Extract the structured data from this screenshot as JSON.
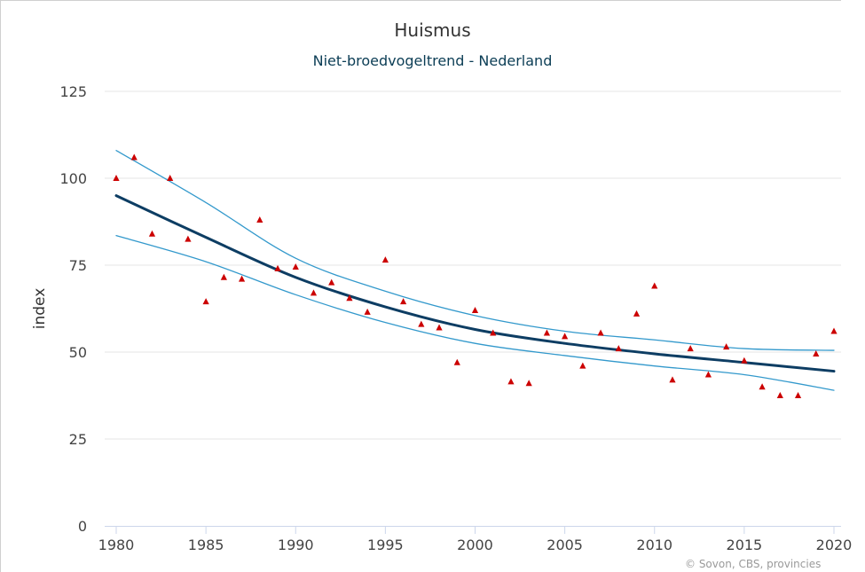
{
  "chart_data": {
    "type": "line",
    "title": "Huismus",
    "subtitle": "Niet-broedvogeltrend - Nederland",
    "xlabel": "",
    "ylabel": "index",
    "xlim": [
      1980,
      2020
    ],
    "ylim": [
      0,
      125
    ],
    "x_ticks": [
      1980,
      1985,
      1990,
      1995,
      2000,
      2005,
      2010,
      2015,
      2020
    ],
    "y_ticks": [
      0,
      25,
      50,
      75,
      100,
      125
    ],
    "grid": "horizontal",
    "colors": {
      "trend": "#0d3d63",
      "confidence": "#3399cc",
      "points": "#cc0000",
      "grid": "#e6e6e6",
      "axis": "#ccd6eb",
      "title": "#333333",
      "subtitle": "#0b3d55"
    },
    "series": [
      {
        "kind": "observed-index",
        "marker": "triangle",
        "x": [
          1980,
          1981,
          1982,
          1983,
          1984,
          1985,
          1986,
          1987,
          1988,
          1989,
          1990,
          1991,
          1992,
          1993,
          1994,
          1995,
          1996,
          1997,
          1998,
          1999,
          2000,
          2001,
          2002,
          2003,
          2004,
          2005,
          2006,
          2007,
          2008,
          2009,
          2010,
          2011,
          2012,
          2013,
          2014,
          2015,
          2016,
          2017,
          2018,
          2019,
          2020
        ],
        "values": [
          100,
          106,
          84,
          100,
          82.5,
          64.5,
          71.5,
          71,
          88,
          74,
          74.5,
          67,
          70,
          65.5,
          61.5,
          76.5,
          64.5,
          58,
          57,
          47,
          62,
          55.5,
          41.5,
          41,
          55.5,
          54.5,
          46,
          55.5,
          51,
          61,
          69,
          42,
          51,
          43.5,
          51.5,
          47.5,
          40,
          37.5,
          37.5,
          49.5,
          56
        ]
      },
      {
        "kind": "trend",
        "x": [
          1980,
          1985,
          1990,
          1995,
          2000,
          2005,
          2010,
          2015,
          2020
        ],
        "values": [
          95,
          83,
          71.5,
          63,
          56.5,
          52.5,
          49.5,
          47,
          44.5
        ]
      },
      {
        "kind": "upper-confidence",
        "x": [
          1980,
          1985,
          1990,
          1995,
          2000,
          2005,
          2010,
          2015,
          2020
        ],
        "values": [
          108,
          93,
          77,
          67.5,
          60.5,
          56,
          53.5,
          51,
          50.5
        ]
      },
      {
        "kind": "lower-confidence",
        "x": [
          1980,
          1985,
          1990,
          1995,
          2000,
          2005,
          2010,
          2015,
          2020
        ],
        "values": [
          83.5,
          76,
          66.5,
          58.5,
          52.5,
          49,
          46,
          43.5,
          39
        ]
      }
    ],
    "credits": "© Sovon, CBS, provincies"
  }
}
